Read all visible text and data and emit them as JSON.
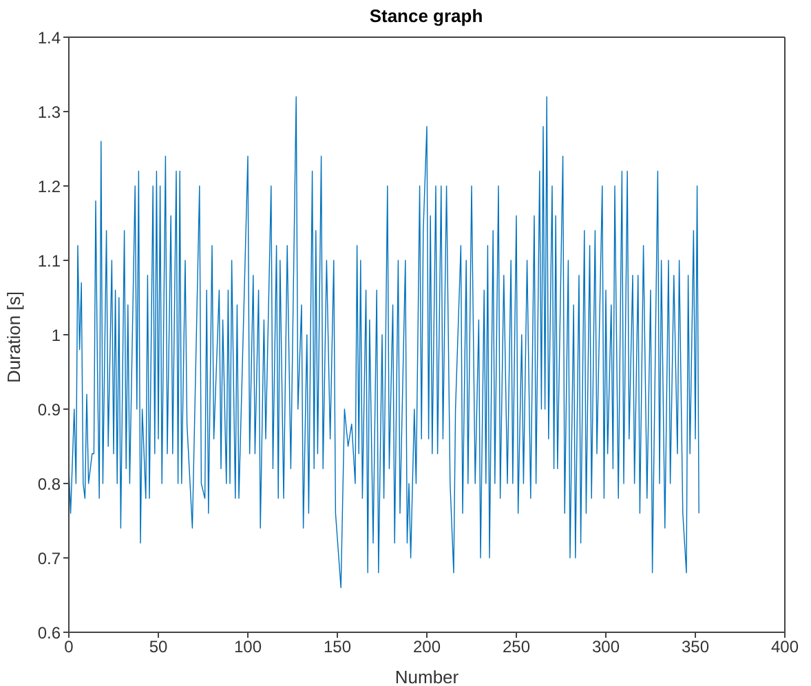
{
  "chart_data": {
    "type": "line",
    "title": "Stance graph",
    "xlabel": "Number",
    "ylabel": "Duration [s]",
    "color": "#0072bd",
    "marker": "none",
    "line_style": "solid",
    "xlim": [
      0,
      400
    ],
    "xticks": [
      0,
      50,
      100,
      150,
      200,
      250,
      300,
      350,
      400
    ],
    "ylim": [
      0.6,
      1.4
    ],
    "yticks": [
      0.6,
      0.7,
      0.8,
      0.9,
      1,
      1.1,
      1.2,
      1.3,
      1.4
    ],
    "x": [
      0,
      1,
      3,
      4,
      5,
      6,
      7,
      8,
      9,
      10,
      11,
      13,
      14,
      15,
      16,
      17,
      18,
      19,
      21,
      22,
      24,
      25,
      26,
      27,
      28,
      29,
      31,
      32,
      33,
      34,
      37,
      38,
      39,
      40,
      41,
      43,
      44,
      45,
      47,
      48,
      49,
      50,
      51,
      52,
      54,
      55,
      57,
      58,
      60,
      61,
      62,
      63,
      65,
      66,
      69,
      73,
      74,
      76,
      77,
      78,
      80,
      81,
      84,
      85,
      86,
      88,
      89,
      90,
      91,
      93,
      94,
      95,
      100,
      101,
      103,
      104,
      106,
      107,
      109,
      110,
      113,
      114,
      116,
      117,
      118,
      120,
      122,
      124,
      127,
      128,
      130,
      131,
      133,
      134,
      136,
      137,
      138,
      139,
      141,
      142,
      144,
      146,
      148,
      149,
      152,
      154,
      156,
      158,
      160,
      161,
      162,
      163,
      164,
      166,
      167,
      168,
      170,
      172,
      173,
      175,
      176,
      178,
      179,
      181,
      182,
      184,
      185,
      188,
      189,
      190,
      191,
      193,
      194,
      196,
      197,
      198,
      200,
      201,
      202,
      203,
      205,
      206,
      208,
      209,
      211,
      213,
      215,
      216,
      219,
      220,
      222,
      223,
      225,
      227,
      229,
      230,
      232,
      233,
      234,
      235,
      237,
      238,
      240,
      241,
      243,
      245,
      247,
      248,
      250,
      251,
      253,
      254,
      256,
      258,
      260,
      261,
      263,
      264,
      265,
      266,
      267,
      268,
      270,
      271,
      272,
      273,
      276,
      277,
      279,
      280,
      282,
      283,
      285,
      286,
      288,
      289,
      291,
      292,
      294,
      295,
      298,
      299,
      300,
      301,
      303,
      304,
      305,
      307,
      309,
      310,
      312,
      313,
      315,
      316,
      318,
      319,
      321,
      323,
      325,
      326,
      329,
      330,
      331,
      333,
      335,
      336,
      338,
      340,
      341,
      343,
      345,
      346,
      347,
      349,
      350,
      351,
      352
    ],
    "values": [
      0.82,
      0.76,
      0.9,
      0.8,
      1.12,
      0.98,
      1.07,
      0.8,
      0.78,
      0.92,
      0.8,
      0.84,
      0.84,
      1.18,
      0.95,
      0.78,
      1.26,
      0.8,
      1.14,
      0.85,
      1.1,
      0.84,
      1.06,
      0.8,
      1.05,
      0.74,
      1.14,
      0.82,
      1.04,
      0.8,
      1.2,
      0.9,
      1.22,
      0.72,
      0.9,
      0.78,
      1.08,
      0.78,
      1.2,
      0.84,
      1.22,
      0.86,
      1.2,
      0.8,
      1.24,
      0.84,
      1.16,
      0.84,
      1.22,
      0.8,
      1.22,
      0.8,
      1.1,
      0.88,
      0.74,
      1.2,
      0.8,
      0.78,
      1.06,
      0.76,
      1.12,
      0.86,
      1.06,
      0.82,
      1.02,
      0.8,
      1.06,
      0.8,
      1.1,
      0.78,
      1.04,
      0.78,
      1.24,
      0.84,
      1.08,
      0.84,
      1.06,
      0.74,
      1.02,
      0.86,
      1.2,
      0.82,
      1.12,
      0.78,
      1.1,
      0.78,
      1.12,
      0.82,
      1.32,
      0.9,
      1.04,
      0.74,
      1.0,
      0.76,
      1.22,
      0.82,
      1.14,
      0.84,
      1.24,
      0.82,
      1.1,
      0.86,
      1.1,
      0.76,
      0.66,
      0.9,
      0.85,
      0.88,
      0.8,
      1.12,
      0.84,
      1.1,
      0.78,
      1.06,
      0.68,
      1.02,
      0.72,
      1.06,
      0.68,
      1.0,
      0.78,
      1.2,
      0.82,
      1.04,
      0.72,
      1.1,
      0.76,
      1.1,
      0.72,
      0.8,
      0.7,
      0.9,
      0.8,
      1.2,
      0.86,
      1.14,
      1.28,
      0.86,
      1.16,
      0.84,
      1.2,
      0.84,
      1.2,
      0.86,
      1.2,
      0.8,
      0.68,
      0.9,
      1.12,
      0.76,
      1.1,
      0.8,
      1.2,
      0.8,
      1.02,
      0.7,
      1.06,
      0.8,
      1.12,
      0.7,
      1.14,
      0.8,
      1.2,
      0.78,
      1.08,
      0.8,
      1.1,
      0.8,
      1.16,
      0.76,
      1.0,
      0.8,
      1.1,
      0.78,
      1.16,
      0.8,
      1.22,
      0.9,
      1.28,
      0.9,
      1.32,
      0.86,
      1.2,
      0.82,
      1.16,
      0.82,
      1.24,
      0.76,
      1.1,
      0.7,
      1.04,
      0.7,
      1.08,
      0.72,
      1.14,
      0.76,
      1.12,
      0.78,
      1.14,
      0.84,
      1.2,
      0.78,
      1.06,
      0.84,
      1.04,
      0.82,
      1.2,
      0.78,
      1.22,
      0.8,
      1.22,
      0.86,
      1.08,
      0.8,
      1.08,
      0.76,
      1.12,
      0.78,
      1.06,
      0.68,
      1.22,
      0.8,
      1.1,
      0.74,
      1.1,
      0.8,
      1.08,
      0.84,
      1.1,
      0.76,
      0.68,
      1.08,
      0.84,
      1.14,
      0.86,
      1.2,
      0.76
    ]
  }
}
